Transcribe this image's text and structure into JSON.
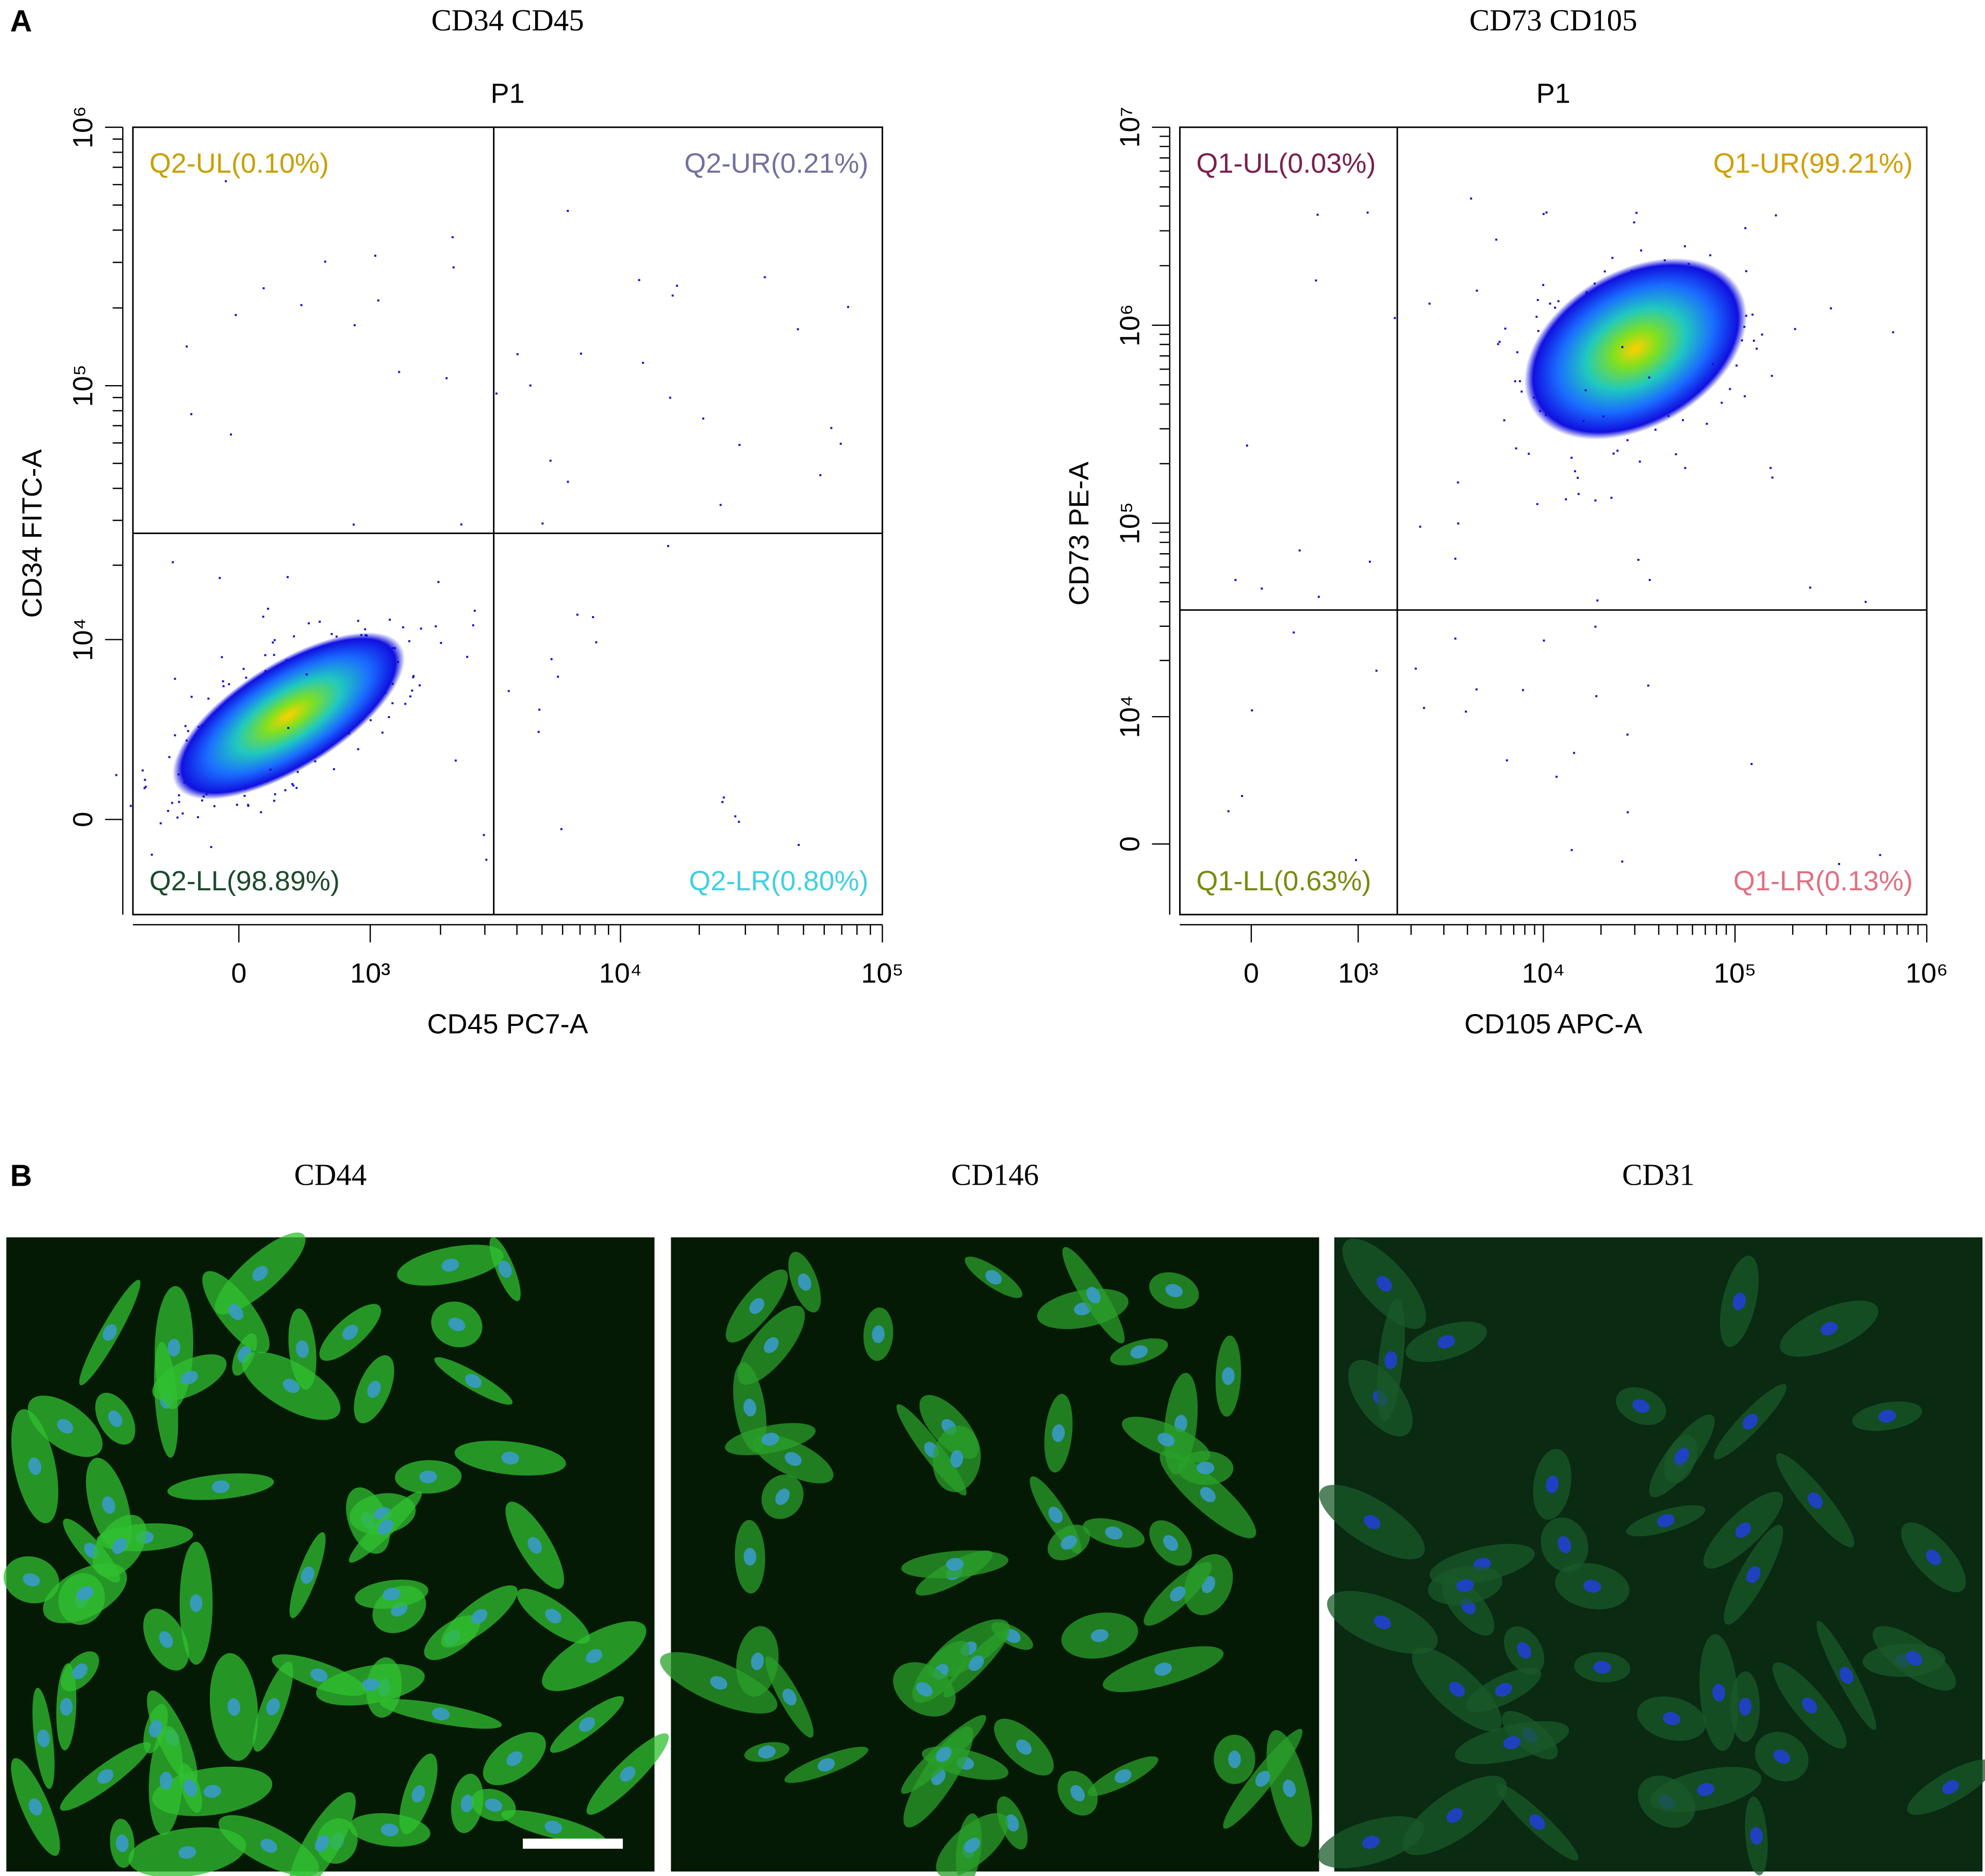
{
  "panel_labels": [
    "A",
    "B"
  ],
  "chart_data": [
    {
      "type": "scatter",
      "title": "CD34 CD45",
      "gate_label": "P1",
      "x_label": "CD45 PC7-A",
      "y_label": "CD34 FITC-A",
      "xscale": "biexponential",
      "yscale": "biexponential",
      "xlim": [
        -750,
        100000
      ],
      "ylim": [
        -4000,
        1000000
      ],
      "xticks": [
        0,
        {
          "value": 1000,
          "label": "10³"
        },
        {
          "value": 10000,
          "label": "10⁴"
        },
        {
          "value": 100000,
          "label": "10⁵"
        }
      ],
      "yticks": [
        0,
        {
          "value": 10000,
          "label": "10⁴"
        },
        {
          "value": 100000,
          "label": "10⁵"
        },
        {
          "value": 1000000,
          "label": "10⁶"
        }
      ],
      "gates": {
        "x": 3250,
        "y": 26700
      },
      "quadrants": [
        {
          "name": "Q2-UL(0.10%)",
          "color": "#c8a000"
        },
        {
          "name": "Q2-UR(0.21%)",
          "color": "#7272a0"
        },
        {
          "name": "Q2-LL(98.89%)",
          "color": "#1e4a2c"
        },
        {
          "name": "Q2-LR(0.80%)",
          "color": "#40d0e0"
        }
      ]
    },
    {
      "type": "scatter",
      "title": "CD73 CD105",
      "gate_label": "P1",
      "x_label": "CD105 APC-A",
      "y_label": "CD73 PE-A",
      "xscale": "biexponential",
      "yscale": "biexponential",
      "xlim": [
        -580,
        1000000
      ],
      "ylim": [
        -4400,
        10000000
      ],
      "xticks": [
        0,
        {
          "value": 1000,
          "label": "10³"
        },
        {
          "value": 10000,
          "label": "10⁴"
        },
        {
          "value": 100000,
          "label": "10⁵"
        },
        {
          "value": 1000000,
          "label": "10⁶"
        }
      ],
      "yticks": [
        0,
        {
          "value": 10000,
          "label": "10⁴"
        },
        {
          "value": 100000,
          "label": "10⁵"
        },
        {
          "value": 1000000,
          "label": "10⁶"
        },
        {
          "value": 10000000,
          "label": "10⁷"
        }
      ],
      "gates": {
        "x": 1680,
        "y": 36300
      },
      "quadrants": [
        {
          "name": "Q1-UL(0.03%)",
          "color": "#7a2050"
        },
        {
          "name": "Q1-UR(99.21%)",
          "color": "#d0a000"
        },
        {
          "name": "Q1-LL(0.63%)",
          "color": "#7a8a10"
        },
        {
          "name": "Q1-LR(0.13%)",
          "color": "#e07080"
        }
      ]
    }
  ],
  "micrographs": [
    "CD44",
    "CD146",
    "CD31"
  ]
}
